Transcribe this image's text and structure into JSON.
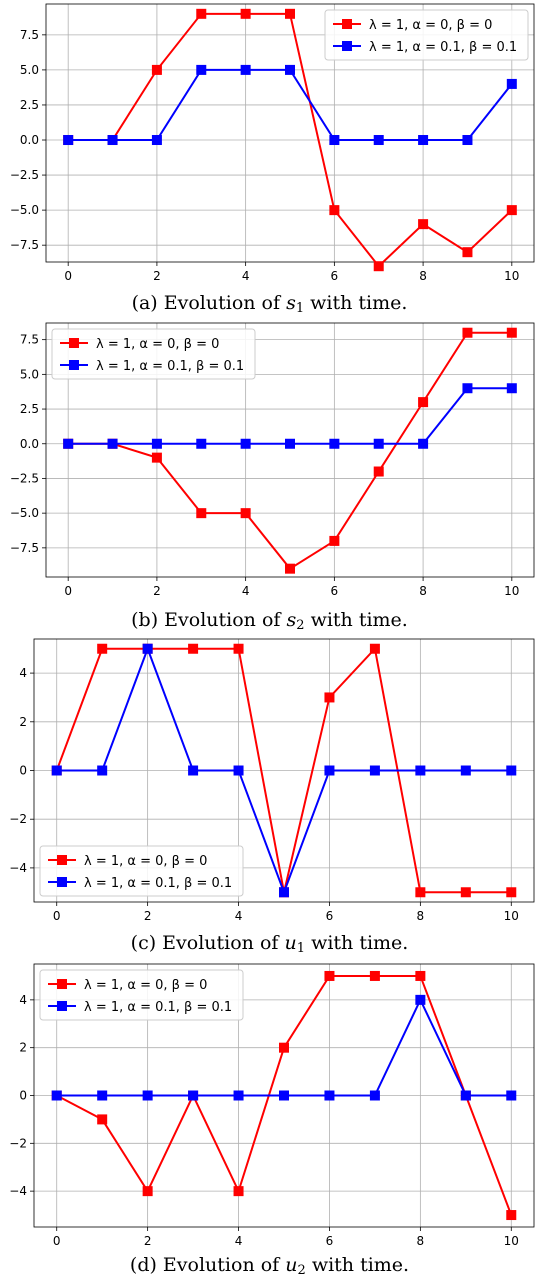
{
  "chart_data": [
    {
      "type": "line",
      "caption": {
        "prefix": "(a) Evolution of",
        "var": "s",
        "sub": "1",
        "suffix": "with time."
      },
      "x": [
        0,
        1,
        2,
        3,
        4,
        5,
        6,
        7,
        8,
        9,
        10
      ],
      "xticks": [
        0,
        2,
        4,
        6,
        8,
        10
      ],
      "xlim": [
        -0.5,
        10.5
      ],
      "ylim": [
        -8.7,
        9.7
      ],
      "yticks": [
        -7.5,
        -5.0,
        -2.5,
        0.0,
        2.5,
        5.0,
        7.5
      ],
      "ytick_labels": [
        "−7.5",
        "−5.0",
        "−2.5",
        "0.0",
        "2.5",
        "5.0",
        "7.5"
      ],
      "grid": true,
      "legend": "top-right",
      "series": [
        {
          "name": "λ = 1, α = 0, β = 0",
          "color": "#ff0000",
          "values": [
            0,
            0,
            5,
            9,
            9,
            9,
            -5,
            -9,
            -6,
            -8,
            -5
          ]
        },
        {
          "name": "λ = 1, α = 0.1, β = 0.1",
          "color": "#0000ff",
          "values": [
            0,
            0,
            0,
            5,
            5,
            5,
            0,
            0,
            0,
            0,
            4
          ]
        }
      ]
    },
    {
      "type": "line",
      "caption": {
        "prefix": "(b) Evolution of",
        "var": "s",
        "sub": "2",
        "suffix": "with time."
      },
      "x": [
        0,
        1,
        2,
        3,
        4,
        5,
        6,
        7,
        8,
        9,
        10
      ],
      "xticks": [
        0,
        2,
        4,
        6,
        8,
        10
      ],
      "xlim": [
        -0.5,
        10.5
      ],
      "ylim": [
        -9.6,
        8.7
      ],
      "yticks": [
        -7.5,
        -5.0,
        -2.5,
        0.0,
        2.5,
        5.0,
        7.5
      ],
      "ytick_labels": [
        "−7.5",
        "−5.0",
        "−2.5",
        "0.0",
        "2.5",
        "5.0",
        "7.5"
      ],
      "grid": true,
      "legend": "top-left",
      "series": [
        {
          "name": "λ = 1, α = 0, β = 0",
          "color": "#ff0000",
          "values": [
            0,
            0,
            -1,
            -5,
            -5,
            -9,
            -7,
            -2,
            3,
            8,
            8
          ]
        },
        {
          "name": "λ = 1, α = 0.1, β = 0.1",
          "color": "#0000ff",
          "values": [
            0,
            0,
            0,
            0,
            0,
            0,
            0,
            0,
            0,
            4,
            4
          ]
        }
      ]
    },
    {
      "type": "line",
      "caption": {
        "prefix": "(c) Evolution of",
        "var": "u",
        "sub": "1",
        "suffix": "with time."
      },
      "x": [
        0,
        1,
        2,
        3,
        4,
        5,
        6,
        7,
        8,
        9,
        10
      ],
      "xticks": [
        0,
        2,
        4,
        6,
        8,
        10
      ],
      "xlim": [
        -0.5,
        10.5
      ],
      "ylim": [
        -5.4,
        5.4
      ],
      "yticks": [
        -4,
        -2,
        0,
        2,
        4
      ],
      "ytick_labels": [
        "−4",
        "−2",
        "0",
        "2",
        "4"
      ],
      "grid": true,
      "legend": "bottom-left",
      "series": [
        {
          "name": "λ = 1, α = 0, β = 0",
          "color": "#ff0000",
          "values": [
            0,
            5,
            5,
            5,
            5,
            -5,
            3,
            5,
            -5,
            -5,
            -5
          ]
        },
        {
          "name": "λ = 1, α = 0.1, β = 0.1",
          "color": "#0000ff",
          "values": [
            0,
            0,
            5,
            0,
            0,
            -5,
            0,
            0,
            0,
            0,
            0
          ]
        }
      ]
    },
    {
      "type": "line",
      "caption": {
        "prefix": "(d) Evolution of",
        "var": "u",
        "sub": "2",
        "suffix": "with time."
      },
      "x": [
        0,
        1,
        2,
        3,
        4,
        5,
        6,
        7,
        8,
        9,
        10
      ],
      "xticks": [
        0,
        2,
        4,
        6,
        8,
        10
      ],
      "xlim": [
        -0.5,
        10.5
      ],
      "ylim": [
        -5.5,
        5.5
      ],
      "yticks": [
        -4,
        -2,
        0,
        2,
        4
      ],
      "ytick_labels": [
        "−4",
        "−2",
        "0",
        "2",
        "4"
      ],
      "grid": true,
      "legend": "top-left",
      "series": [
        {
          "name": "λ = 1, α = 0, β = 0",
          "color": "#ff0000",
          "values": [
            0,
            -1,
            -4,
            0,
            -4,
            2,
            5,
            5,
            5,
            0,
            -5
          ]
        },
        {
          "name": "λ = 1, α = 0.1, β = 0.1",
          "color": "#0000ff",
          "values": [
            0,
            0,
            0,
            0,
            0,
            0,
            0,
            0,
            4,
            0,
            0
          ]
        }
      ]
    }
  ]
}
